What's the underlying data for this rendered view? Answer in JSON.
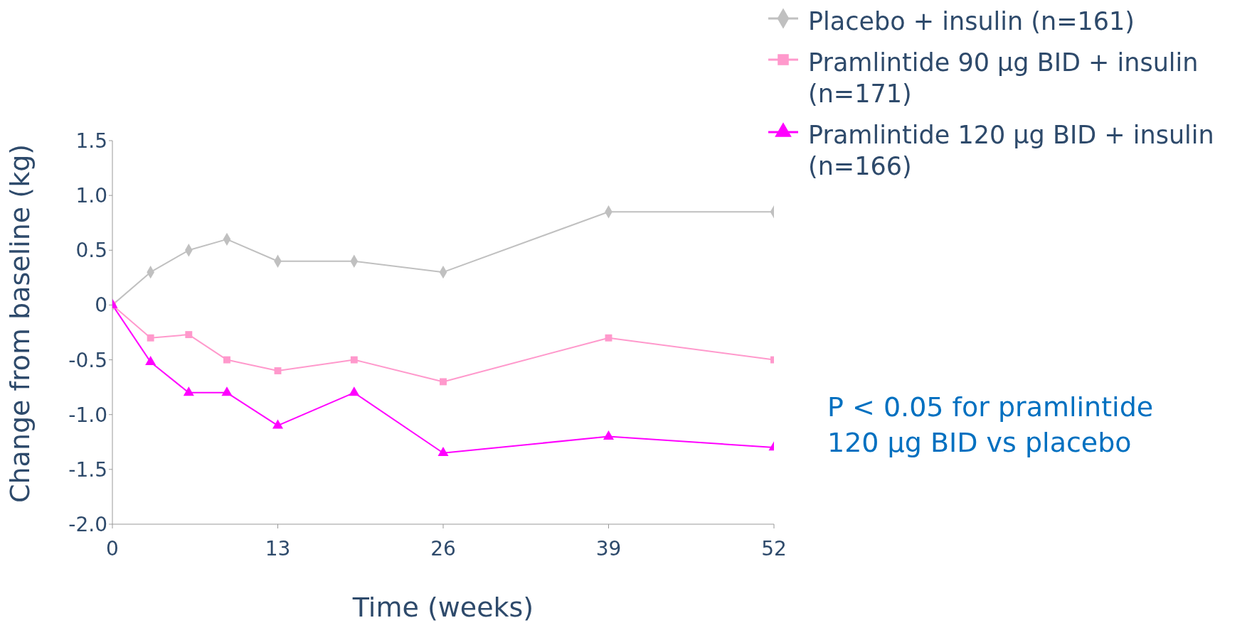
{
  "chart_data": {
    "type": "line",
    "xlabel": "Time (weeks)",
    "ylabel": "Change from baseline (kg)",
    "x": [
      0,
      3,
      6,
      9,
      13,
      19,
      26,
      39,
      52
    ],
    "series": [
      {
        "name": "Placebo + insulin (n=161)",
        "color": "#c0c0c0",
        "marker": "diamond",
        "values": [
          0,
          0.3,
          0.5,
          0.6,
          0.4,
          0.4,
          0.3,
          0.85,
          0.85
        ]
      },
      {
        "name": "Pramlintide 90 μg BID + insulin (n=171)",
        "color": "#ff99cc",
        "marker": "square",
        "values": [
          0,
          -0.3,
          -0.27,
          -0.5,
          -0.6,
          -0.5,
          -0.7,
          -0.3,
          -0.5
        ]
      },
      {
        "name": "Pramlintide 120 μg BID + insulin (n=166)",
        "color": "#ff00ff",
        "marker": "triangle",
        "values": [
          0,
          -0.52,
          -0.8,
          -0.8,
          -1.1,
          -0.8,
          -1.35,
          -1.2,
          -1.3
        ]
      }
    ],
    "xlim": [
      0,
      52
    ],
    "xticks": [
      0,
      13,
      26,
      39,
      52
    ],
    "ylim": [
      -2,
      1.5
    ],
    "yticks": [
      {
        "value": -2,
        "label": "-2.0"
      },
      {
        "value": -1.5,
        "label": "-1.5"
      },
      {
        "value": -1,
        "label": "-1.0"
      },
      {
        "value": -0.5,
        "label": "-0.5"
      },
      0,
      {
        "value": 0.5,
        "label": "0.5"
      },
      {
        "value": 1,
        "label": "1.0"
      },
      {
        "value": 1.5,
        "label": "1.5"
      }
    ],
    "grid": false,
    "legend": "top right",
    "line_style": "solid",
    "annotations": [
      "P < 0.05 for pramlintide 120 μg BID vs placebo"
    ]
  }
}
